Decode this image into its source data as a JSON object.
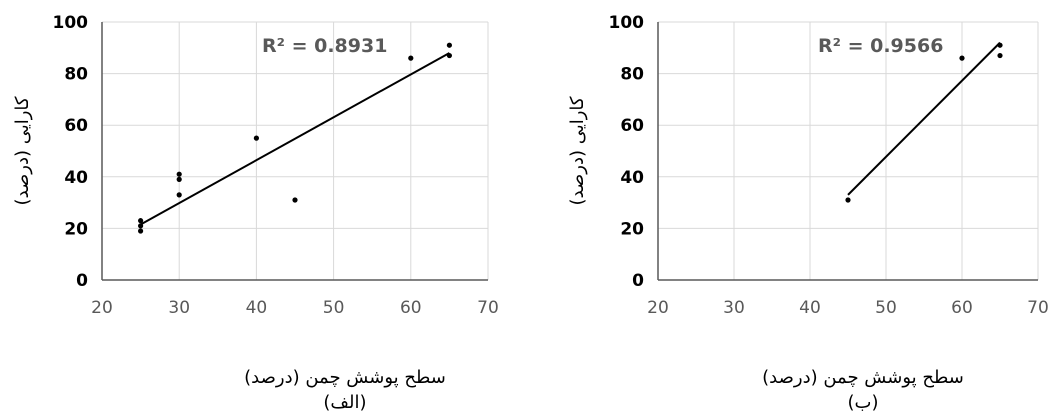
{
  "charts": [
    {
      "type": "scatter",
      "r2_label": "R² = 0.8931",
      "xlabel": "سطح پوشش چمن (درصد)",
      "ylabel": "کارایی (درصد)",
      "caption": "(الف)",
      "xlim": [
        20,
        70
      ],
      "ylim": [
        0,
        100
      ],
      "x_ticks": [
        "20",
        "30",
        "40",
        "50",
        "60",
        "70"
      ],
      "y_ticks": [
        "0",
        "20",
        "40",
        "60",
        "80",
        "100"
      ],
      "grid": true,
      "trendline": {
        "x": [
          25,
          65
        ],
        "y": [
          21.5,
          88
        ]
      },
      "x": [
        25,
        25,
        25,
        30,
        30,
        30,
        40,
        45,
        60,
        65,
        65
      ],
      "y": [
        19,
        21,
        23,
        33,
        39,
        41,
        55,
        31,
        86,
        87,
        91
      ]
    },
    {
      "type": "scatter",
      "r2_label": "R² = 0.9566",
      "xlabel": "سطح پوشش چمن (درصد)",
      "ylabel": "کارایی (درصد)",
      "caption": "(ب)",
      "xlim": [
        20,
        70
      ],
      "ylim": [
        0,
        100
      ],
      "x_ticks": [
        "20",
        "30",
        "40",
        "50",
        "60",
        "70"
      ],
      "y_ticks": [
        "0",
        "20",
        "40",
        "60",
        "80",
        "100"
      ],
      "grid": true,
      "trendline": {
        "x": [
          45,
          65
        ],
        "y": [
          33,
          92
        ]
      },
      "x": [
        45,
        60,
        65,
        65
      ],
      "y": [
        31,
        86,
        87,
        91
      ]
    }
  ]
}
